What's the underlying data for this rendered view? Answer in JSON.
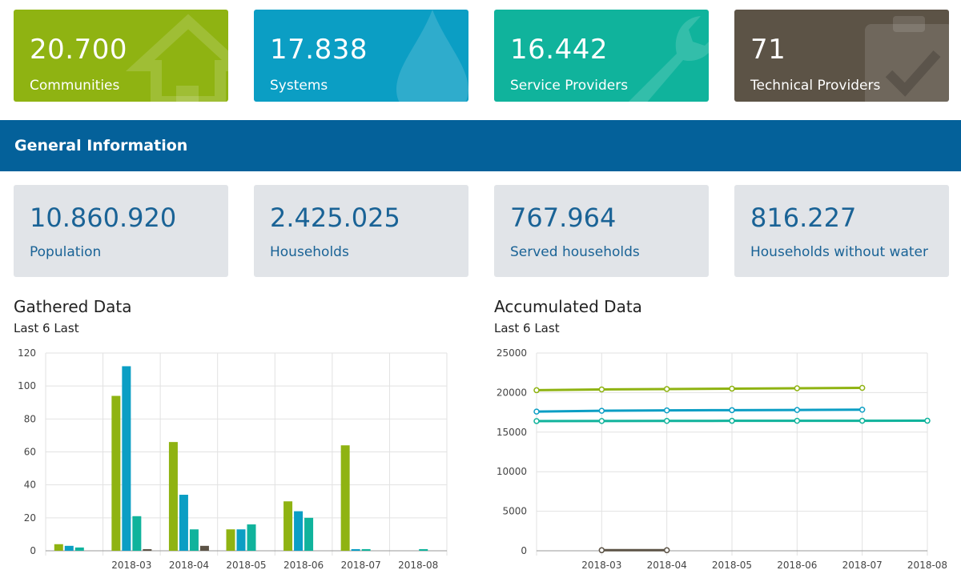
{
  "stats": [
    {
      "value": "20.700",
      "label": "Communities",
      "color": "#8fb312",
      "icon": "house-icon"
    },
    {
      "value": "17.838",
      "label": "Systems",
      "color": "#0b9ec4",
      "icon": "water-drop-icon"
    },
    {
      "value": "16.442",
      "label": "Service Providers",
      "color": "#10b39c",
      "icon": "wrench-icon"
    },
    {
      "value": "71",
      "label": "Technical Providers",
      "color": "#5c5346",
      "icon": "clipboard-check-icon"
    }
  ],
  "section": {
    "title": "General Information",
    "color": "#04619a"
  },
  "info": [
    {
      "value": "10.860.920",
      "label": "Population"
    },
    {
      "value": "2.425.025",
      "label": "Households"
    },
    {
      "value": "767.964",
      "label": "Served households"
    },
    {
      "value": "816.227",
      "label": "Households without water"
    }
  ],
  "gathered": {
    "title": "Gathered Data",
    "subtitle": "Last 6 Last"
  },
  "accumulated": {
    "title": "Accumulated Data",
    "subtitle": "Last 6 Last"
  },
  "chart_data": [
    {
      "type": "bar",
      "title": "Gathered Data",
      "subtitle": "Last 6 Last",
      "categories": [
        "",
        "2018-03",
        "2018-04",
        "2018-05",
        "2018-06",
        "2018-07",
        "2018-08"
      ],
      "ylim": [
        0,
        120
      ],
      "yticks": [
        0,
        20,
        40,
        60,
        80,
        100,
        120
      ],
      "grid": true,
      "series": [
        {
          "color": "#8fb312",
          "values": [
            4,
            94,
            66,
            13,
            30,
            64,
            0
          ]
        },
        {
          "color": "#0b9ec4",
          "values": [
            3,
            112,
            34,
            13,
            24,
            1,
            0
          ]
        },
        {
          "color": "#10b39c",
          "values": [
            2,
            21,
            13,
            16,
            20,
            1,
            1
          ]
        },
        {
          "color": "#5c5346",
          "values": [
            0,
            1,
            3,
            0,
            0,
            0,
            0
          ]
        }
      ]
    },
    {
      "type": "line",
      "title": "Accumulated Data",
      "subtitle": "Last 6 Last",
      "x": [
        "",
        "2018-03",
        "2018-04",
        "2018-05",
        "2018-06",
        "2018-07",
        "2018-08"
      ],
      "ylim": [
        0,
        25000
      ],
      "yticks": [
        0,
        5000,
        10000,
        15000,
        20000,
        25000
      ],
      "grid": true,
      "series": [
        {
          "color": "#8fb312",
          "values": [
            20300,
            20400,
            20450,
            20500,
            20550,
            20600,
            null
          ]
        },
        {
          "color": "#0b9ec4",
          "values": [
            17600,
            17700,
            17750,
            17780,
            17800,
            17838,
            null
          ]
        },
        {
          "color": "#10b39c",
          "values": [
            16400,
            16410,
            16420,
            16430,
            16435,
            16440,
            16442
          ]
        },
        {
          "color": "#5c5346",
          "values": [
            null,
            71,
            71,
            null,
            null,
            null,
            null
          ]
        }
      ]
    }
  ]
}
